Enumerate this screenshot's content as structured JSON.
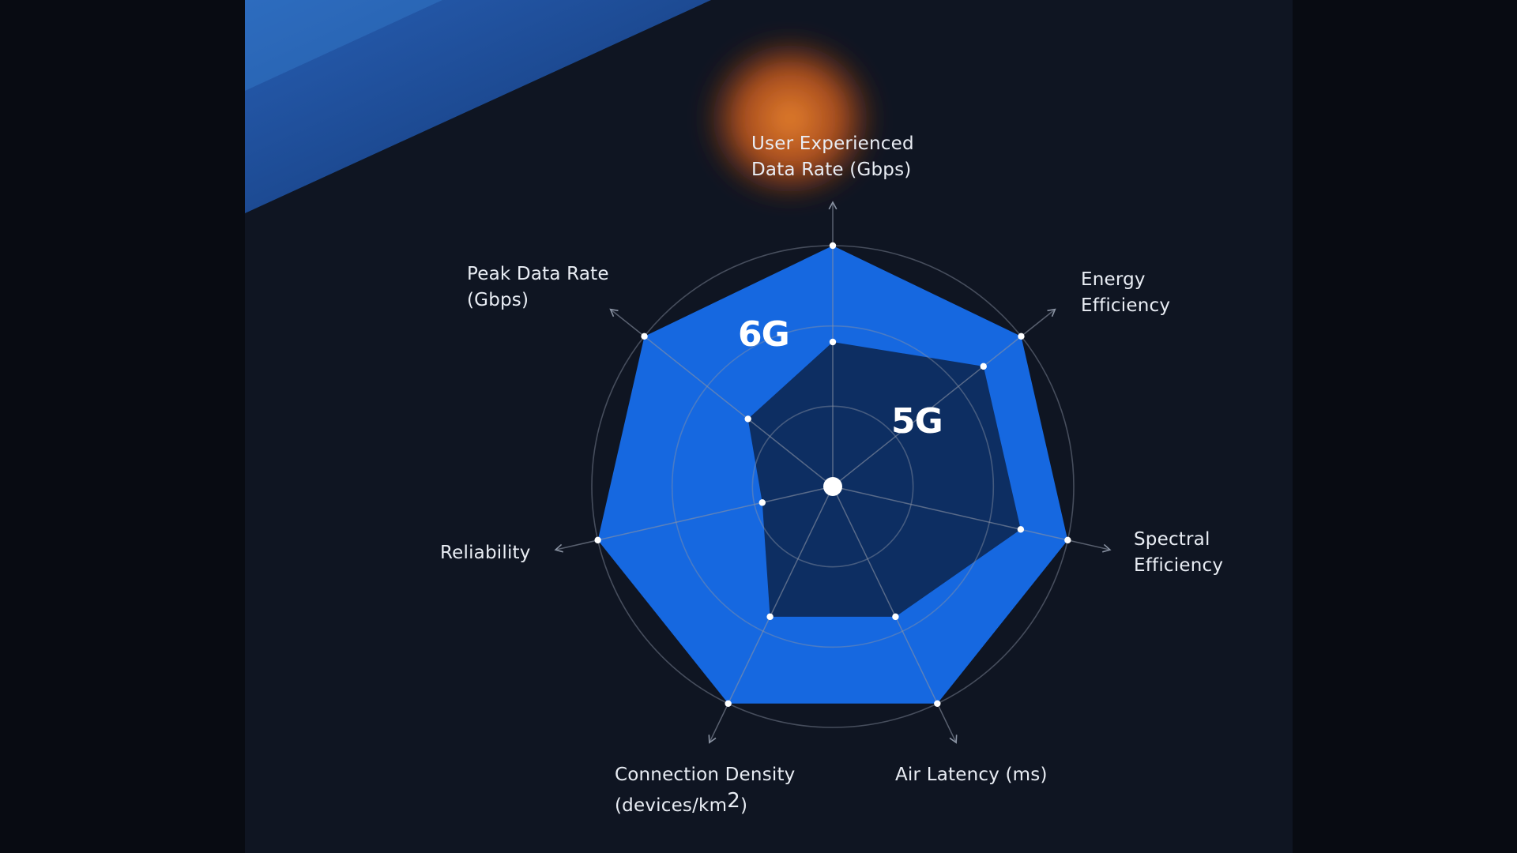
{
  "chart_data": {
    "type": "radar",
    "axes": [
      {
        "key": "user_experienced_data_rate",
        "label_lines": [
          "User Experienced",
          "Data Rate (Gbps)"
        ]
      },
      {
        "key": "energy_efficiency",
        "label_lines": [
          "Energy",
          "Efficiency"
        ]
      },
      {
        "key": "spectral_efficiency",
        "label_lines": [
          "Spectral",
          "Efficiency"
        ]
      },
      {
        "key": "air_latency",
        "label_lines": [
          "Air Latency (ms)"
        ]
      },
      {
        "key": "connection_density",
        "label_lines": [
          "Connection Density",
          "(devices/km",
          "2",
          ")"
        ]
      },
      {
        "key": "reliability",
        "label_lines": [
          "Reliability"
        ]
      },
      {
        "key": "peak_data_rate",
        "label_lines": [
          "Peak Data Rate",
          "(Gbps)"
        ]
      }
    ],
    "series": [
      {
        "name": "6G",
        "values": [
          1.0,
          1.0,
          1.0,
          1.0,
          1.0,
          1.0,
          1.0
        ],
        "color": "#1668e0"
      },
      {
        "name": "5G",
        "values": [
          0.6,
          0.8,
          0.8,
          0.6,
          0.6,
          0.3,
          0.45
        ],
        "color": "#0d2e62"
      }
    ],
    "rings": 3,
    "grid": true,
    "colors": {
      "grid": "#8a93a3",
      "point": "#ffffff",
      "axis_text": "#e9edf4",
      "glow": "#f0782a",
      "band": "#1f4f9e"
    }
  }
}
